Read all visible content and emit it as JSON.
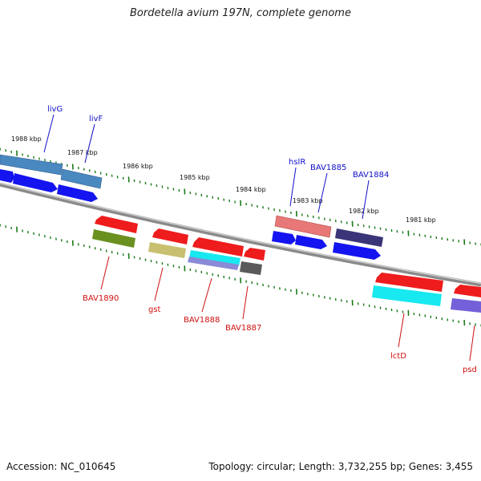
{
  "title": "Bordetella avium 197N, complete genome",
  "accession": "Accession: NC_010645",
  "topology": "Topology: circular; Length: 3,732,255 bp; Genes: 3,455",
  "tick_labels": [
    "1988 kbp",
    "1987 kbp",
    "1986 kbp",
    "1985 kbp",
    "1984 kbp",
    "1983 kbp",
    "1982 kbp",
    "1981 kbp"
  ],
  "forward_genes": [
    "livG",
    "livF",
    "hslR",
    "BAV1885",
    "BAV1884"
  ],
  "reverse_genes": [
    "BAV1890",
    "gst",
    "BAV1888",
    "BAV1887",
    "lctD",
    "psd"
  ],
  "colors": {
    "backbone": "#7a7a7a",
    "tick": "#1a7a1a",
    "forward_label": "#1010c8",
    "reverse_label": "#d01010",
    "gene_blue": "#1414f0",
    "gene_red": "#ee1c1c",
    "steel_blue": "#4a88c0",
    "salmon": "#e87878",
    "navy_purple": "#3a3478",
    "olive": "#6a9020",
    "khaki": "#c8c070",
    "cyan": "#18e8f0",
    "slate_blue": "#8a8ad8",
    "dark_gray": "#5a5a5a",
    "violet": "#7460d8"
  }
}
